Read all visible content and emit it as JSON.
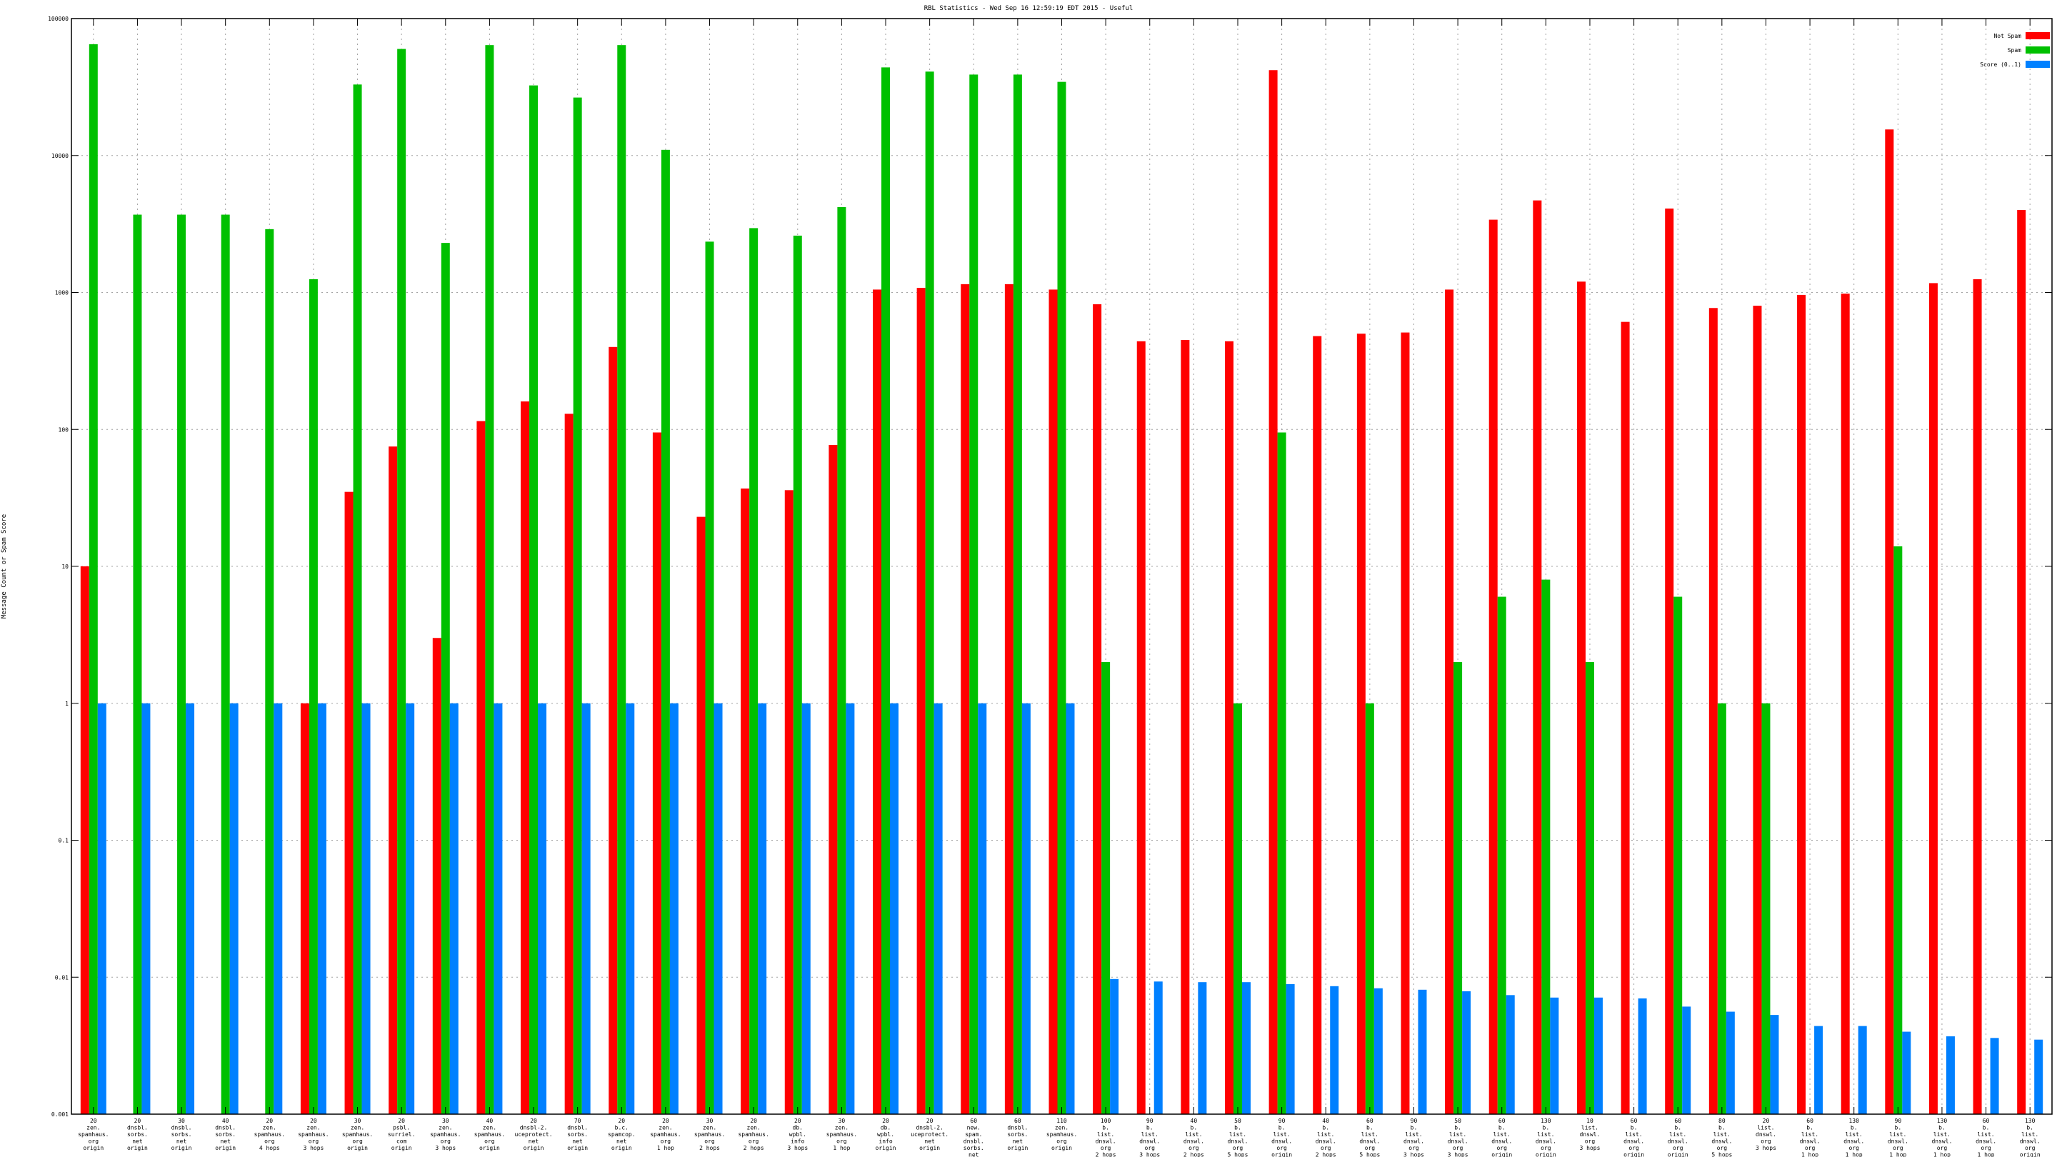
{
  "chart_data": {
    "type": "bar",
    "title": "RBL Statistics - Wed Sep 16 12:59:19 EDT 2015 - Useful",
    "ylabel": "Message Count or Spam Score",
    "xlabel": "",
    "yscale": "log",
    "ylim": [
      0.001,
      100000
    ],
    "y_ticks": [
      0.001,
      0.01,
      0.1,
      1,
      10,
      100,
      1000,
      10000,
      100000
    ],
    "y_tick_labels": [
      "0.001",
      "0.01",
      "0.1",
      "1",
      "10",
      "100",
      "1000",
      "10000",
      "100000"
    ],
    "grid": true,
    "legend_position": "top-right",
    "categories": [
      [
        "20",
        "zen.",
        "spamhaus.",
        "org",
        "origin"
      ],
      [
        "20",
        "dnsbl.",
        "sorbs.",
        "net",
        "origin"
      ],
      [
        "30",
        "dnsbl.",
        "sorbs.",
        "net",
        "origin"
      ],
      [
        "40",
        "dnsbl.",
        "sorbs.",
        "net",
        "origin"
      ],
      [
        "20",
        "zen.",
        "spamhaus.",
        "org",
        "4 hops"
      ],
      [
        "20",
        "zen.",
        "spamhaus.",
        "org",
        "3 hops"
      ],
      [
        "30",
        "zen.",
        "spamhaus.",
        "org",
        "origin"
      ],
      [
        "20",
        "psbl.",
        "surriel.",
        "com",
        "origin"
      ],
      [
        "30",
        "zen.",
        "spamhaus.",
        "org",
        "3 hops"
      ],
      [
        "40",
        "zen.",
        "spamhaus.",
        "org",
        "origin"
      ],
      [
        "20",
        "dnsbl-2.",
        "uceprotect.",
        "net",
        "origin"
      ],
      [
        "70",
        "dnsbl.",
        "sorbs.",
        "net",
        "origin"
      ],
      [
        "20",
        "b.c.",
        "spamcop.",
        "net",
        "origin"
      ],
      [
        "20",
        "zen.",
        "spamhaus.",
        "org",
        "1 hop"
      ],
      [
        "30",
        "zen.",
        "spamhaus.",
        "org",
        "2 hops"
      ],
      [
        "20",
        "zen.",
        "spamhaus.",
        "org",
        "2 hops"
      ],
      [
        "20",
        "db.",
        "wpbl.",
        "info",
        "3 hops"
      ],
      [
        "30",
        "zen.",
        "spamhaus.",
        "org",
        "1 hop"
      ],
      [
        "20",
        "db.",
        "wpbl.",
        "info",
        "origin"
      ],
      [
        "20",
        "dnsbl-2.",
        "uceprotect.",
        "net",
        "origin"
      ],
      [
        "60",
        "new.",
        "spam.",
        "dnsbl.",
        "sorbs.",
        "net",
        "origin"
      ],
      [
        "60",
        "dnsbl.",
        "sorbs.",
        "net",
        "origin"
      ],
      [
        "110",
        "zen.",
        "spamhaus.",
        "org",
        "origin"
      ],
      [
        "100",
        "b.",
        "list.",
        "dnswl.",
        "org",
        "2 hops"
      ],
      [
        "90",
        "b.",
        "list.",
        "dnswl.",
        "org",
        "3 hops"
      ],
      [
        "40",
        "b.",
        "list.",
        "dnswl.",
        "org",
        "2 hops"
      ],
      [
        "50",
        "b.",
        "list.",
        "dnswl.",
        "org",
        "5 hops"
      ],
      [
        "90",
        "b.",
        "list.",
        "dnswl.",
        "org",
        "origin"
      ],
      [
        "40",
        "b.",
        "list.",
        "dnswl.",
        "org",
        "2 hops"
      ],
      [
        "60",
        "b.",
        "list.",
        "dnswl.",
        "org",
        "5 hops"
      ],
      [
        "90",
        "b.",
        "list.",
        "dnswl.",
        "org",
        "3 hops"
      ],
      [
        "50",
        "b.",
        "list.",
        "dnswl.",
        "org",
        "3 hops"
      ],
      [
        "60",
        "b.",
        "list.",
        "dnswl.",
        "org",
        "origin"
      ],
      [
        "130",
        "b.",
        "list.",
        "dnswl.",
        "org",
        "origin"
      ],
      [
        "10",
        "list.",
        "dnswl.",
        "org",
        "3 hops"
      ],
      [
        "60",
        "b.",
        "list.",
        "dnswl.",
        "org",
        "origin"
      ],
      [
        "60",
        "b.",
        "list.",
        "dnswl.",
        "org",
        "origin"
      ],
      [
        "80",
        "b.",
        "list.",
        "dnswl.",
        "org",
        "5 hops"
      ],
      [
        "20",
        "list.",
        "dnswl.",
        "org",
        "3 hops"
      ],
      [
        "60",
        "b.",
        "list.",
        "dnswl.",
        "org",
        "1 hop"
      ],
      [
        "130",
        "b.",
        "list.",
        "dnswl.",
        "org",
        "1 hop"
      ],
      [
        "90",
        "b.",
        "list.",
        "dnswl.",
        "org",
        "1 hop"
      ],
      [
        "130",
        "b.",
        "list.",
        "dnswl.",
        "org",
        "1 hop"
      ],
      [
        "60",
        "b.",
        "list.",
        "dnswl.",
        "org",
        "1 hop"
      ],
      [
        "130",
        "b.",
        "list.",
        "dnswl.",
        "org",
        "origin"
      ]
    ],
    "series": [
      {
        "name": "Not Spam",
        "color": "#ff0000",
        "values": [
          10,
          null,
          null,
          null,
          null,
          1,
          35,
          75,
          3,
          115,
          160,
          130,
          400,
          95,
          23,
          37,
          36,
          77,
          1050,
          1080,
          1150,
          1150,
          1050,
          820,
          440,
          450,
          440,
          42000,
          480,
          500,
          510,
          1050,
          3400,
          4700,
          1200,
          610,
          4100,
          770,
          800,
          960,
          980,
          15500,
          1170,
          1250,
          4000
        ]
      },
      {
        "name": "Spam",
        "color": "#00c000",
        "values": [
          65000,
          3700,
          3700,
          3700,
          2900,
          1250,
          33000,
          60000,
          2300,
          64000,
          32500,
          26500,
          64000,
          11000,
          2350,
          2950,
          2600,
          4200,
          44000,
          41000,
          39000,
          39000,
          34500,
          2,
          null,
          null,
          1,
          95,
          null,
          1,
          null,
          2,
          6,
          8,
          2,
          null,
          6,
          1,
          1,
          null,
          null,
          14,
          null,
          null,
          null
        ]
      },
      {
        "name": "Score (0..1)",
        "color": "#0080ff",
        "values": [
          1,
          1,
          1,
          1,
          1,
          1,
          1,
          1,
          1,
          1,
          1,
          1,
          1,
          1,
          1,
          1,
          1,
          1,
          1,
          1,
          1,
          1,
          1,
          0.0097,
          0.0093,
          0.0092,
          0.0092,
          0.0089,
          0.0086,
          0.0083,
          0.0081,
          0.0079,
          0.0074,
          0.0071,
          0.0071,
          0.007,
          0.0061,
          0.0056,
          0.0053,
          0.0044,
          0.0044,
          0.004,
          0.0037,
          0.0036,
          0.0035
        ]
      }
    ]
  }
}
